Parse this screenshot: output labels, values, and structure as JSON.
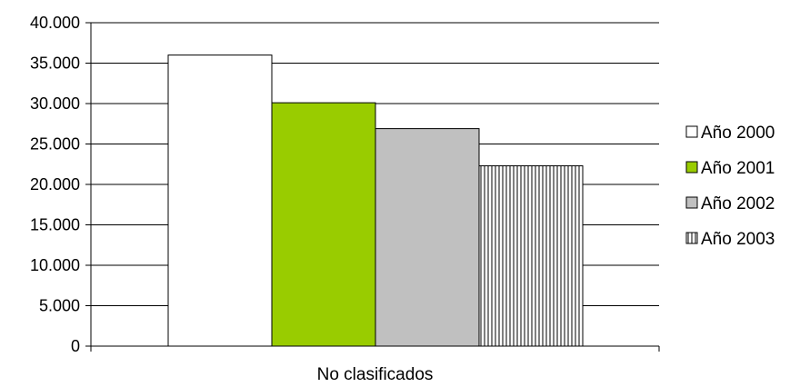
{
  "chart_data": {
    "type": "bar",
    "categories": [
      "No clasificados"
    ],
    "series": [
      {
        "name": "Año 2000",
        "values": [
          36000
        ],
        "color": "#ffffff",
        "pattern": "none"
      },
      {
        "name": "Año 2001",
        "values": [
          30100
        ],
        "color": "#99cc00",
        "pattern": "none"
      },
      {
        "name": "Año 2002",
        "values": [
          26900
        ],
        "color": "#c0c0c0",
        "pattern": "none"
      },
      {
        "name": "Año 2003",
        "values": [
          22300
        ],
        "color": "#ffffff",
        "pattern": "vertical-lines"
      }
    ],
    "ylim": [
      0,
      40000
    ],
    "yticks": [
      0,
      5000,
      10000,
      15000,
      20000,
      25000,
      30000,
      35000,
      40000
    ],
    "ytick_labels": [
      "0",
      "5.000",
      "10.000",
      "15.000",
      "20.000",
      "25.000",
      "30.000",
      "35.000",
      "40.000"
    ],
    "title": "",
    "xlabel": "",
    "ylabel": "",
    "grid": true,
    "legend_position": "right"
  }
}
